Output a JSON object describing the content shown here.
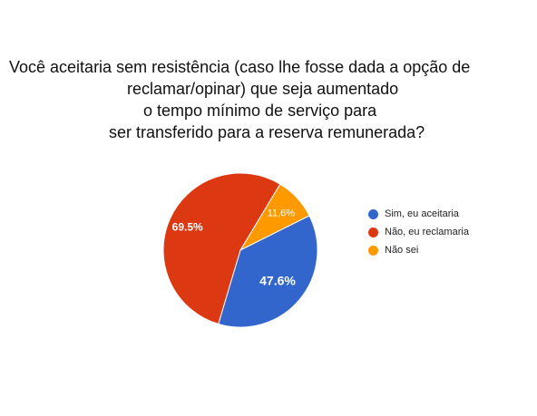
{
  "chart_data": {
    "type": "pie",
    "title_lines": [
      "Você aceitaria sem resistência (caso lhe fosse dada a opção de",
      "reclamar/opinar) que seja aumentado",
      "o tempo mínimo de serviço para",
      "ser transferido para a reserva remunerada?"
    ],
    "slices": [
      {
        "label": "Sim, eu aceitaria",
        "value": 47.6,
        "display": "47.6%",
        "color": "#3366cc"
      },
      {
        "label": "Não, eu reclamaria",
        "value": 69.5,
        "display": "69.5%",
        "color": "#dc3912"
      },
      {
        "label": "Não sei",
        "value": 11.6,
        "display": "11,6%",
        "color": "#ff9900"
      }
    ],
    "legend_position": "right"
  }
}
